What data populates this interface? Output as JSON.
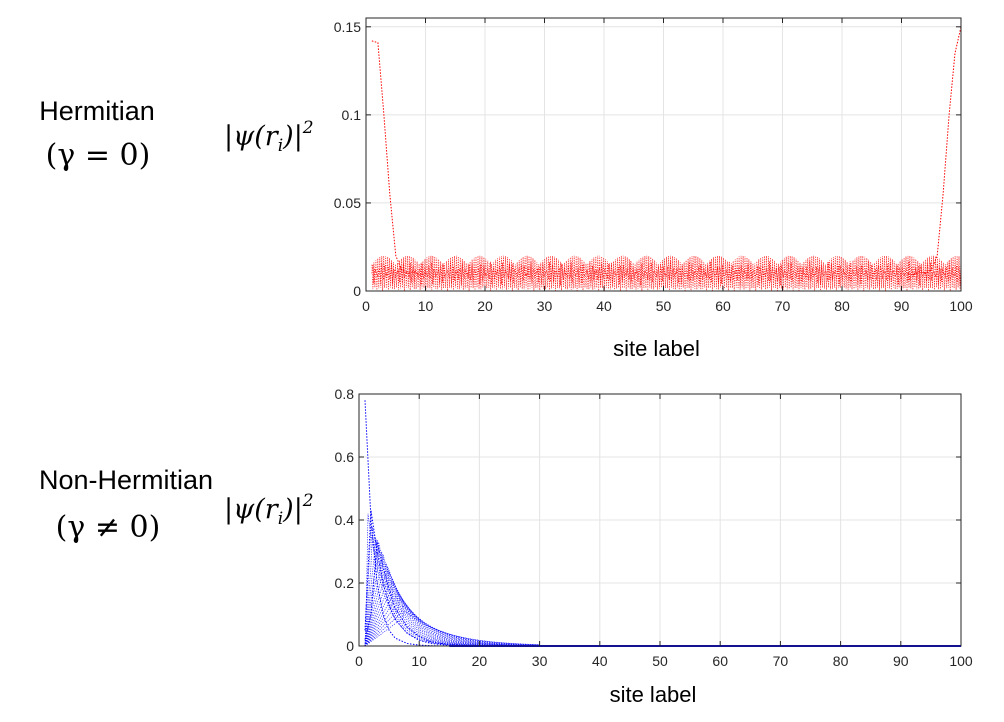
{
  "panels": [
    {
      "row_title": "Hermitian",
      "row_param": "(γ = 0)",
      "ylabel": "|ψ(r",
      "ylabel_sub": "i",
      "ylabel_tail": ")|",
      "ylabel_sup": "2"
    },
    {
      "row_title": "Non-Hermitian",
      "row_param": "(γ ≠ 0)",
      "ylabel": "|ψ(r",
      "ylabel_sub": "i",
      "ylabel_tail": ")|",
      "ylabel_sup": "2"
    }
  ],
  "chart_data": [
    {
      "type": "line",
      "xlabel": "site label",
      "xlim": [
        0,
        100
      ],
      "ylim": [
        0,
        0.155
      ],
      "xticks": [
        0,
        10,
        20,
        30,
        40,
        50,
        60,
        70,
        80,
        90,
        100
      ],
      "yticks": [
        0,
        0.05,
        0.1,
        0.15
      ],
      "ytick_labels": [
        "0",
        "0.05",
        "0.1",
        "0.15"
      ],
      "grid": true,
      "line_style": "dotted",
      "color": "#ff0000",
      "series": [
        {
          "x": [
            1,
            2,
            3,
            4,
            5,
            6,
            7,
            8,
            9,
            10
          ],
          "values": [
            0.142,
            0.141,
            0.1,
            0.055,
            0.02,
            0.012,
            0.01,
            0.011,
            0.009,
            0.01
          ]
        },
        {
          "x": [
            91,
            92,
            93,
            94,
            95,
            96,
            97,
            98,
            99,
            100
          ],
          "values": [
            0.01,
            0.009,
            0.011,
            0.01,
            0.012,
            0.02,
            0.055,
            0.1,
            0.135,
            0.15
          ]
        }
      ],
      "band": {
        "x_range": [
          1,
          100
        ],
        "low": 0.0,
        "high": 0.02,
        "typical": 0.01
      }
    },
    {
      "type": "line",
      "xlabel": "site label",
      "xlim": [
        0,
        100
      ],
      "ylim": [
        0,
        0.8
      ],
      "xticks": [
        0,
        10,
        20,
        30,
        40,
        50,
        60,
        70,
        80,
        90,
        100
      ],
      "yticks": [
        0,
        0.2,
        0.4,
        0.6,
        0.8
      ],
      "ytick_labels": [
        "0",
        "0.2",
        "0.4",
        "0.6",
        "0.8"
      ],
      "grid": true,
      "line_style": "dotted",
      "color": "#0000ff",
      "series": [
        {
          "x": [
            1,
            2,
            3,
            4,
            5,
            6,
            8,
            10,
            12,
            15,
            18,
            20,
            30,
            50,
            100
          ],
          "values": [
            0.78,
            0.4,
            0.2,
            0.1,
            0.05,
            0.025,
            0.008,
            0.003,
            0.001,
            0.0,
            0.0,
            0.0,
            0.0,
            0.0,
            0.0
          ]
        },
        {
          "x": [
            1,
            2,
            3,
            4,
            5,
            6,
            8,
            10,
            12,
            15,
            18,
            20,
            30,
            50,
            100
          ],
          "values": [
            0.05,
            0.43,
            0.3,
            0.2,
            0.13,
            0.085,
            0.04,
            0.018,
            0.008,
            0.002,
            0.0,
            0.0,
            0.0,
            0.0,
            0.0
          ]
        },
        {
          "x": [
            1,
            2,
            3,
            4,
            5,
            6,
            8,
            10,
            12,
            15,
            18,
            20,
            30,
            50,
            100
          ],
          "values": [
            0.02,
            0.1,
            0.33,
            0.25,
            0.18,
            0.12,
            0.06,
            0.03,
            0.013,
            0.004,
            0.001,
            0.0,
            0.0,
            0.0,
            0.0
          ]
        }
      ]
    }
  ]
}
